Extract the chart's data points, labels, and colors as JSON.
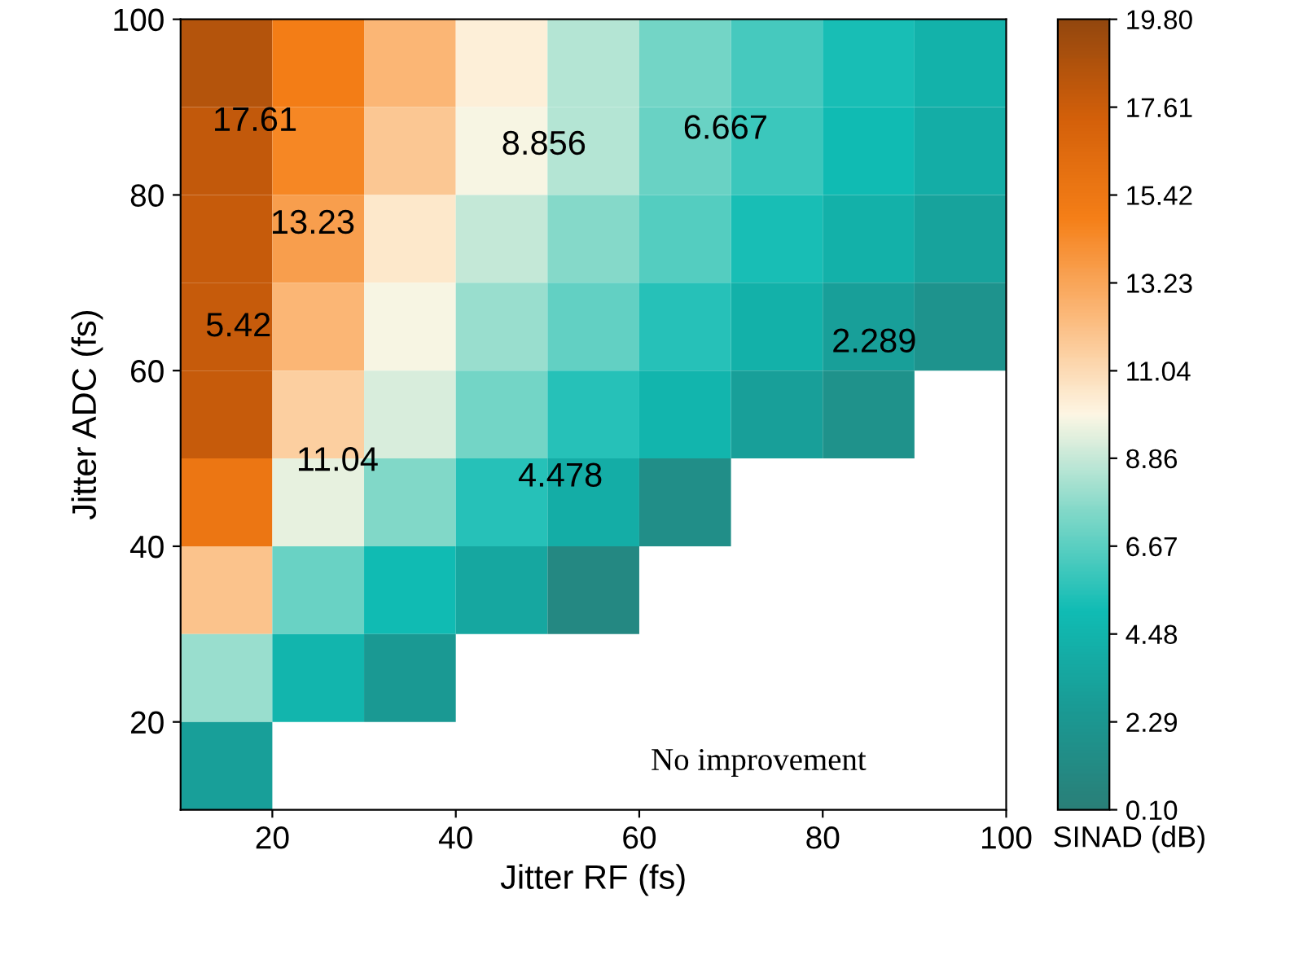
{
  "chart_data": {
    "type": "heatmap",
    "xlabel": "Jitter RF (fs)",
    "ylabel": "Jitter ADC (fs)",
    "clabel": "SINAD (dB)",
    "x": [
      15,
      25,
      35,
      45,
      55,
      65,
      75,
      85,
      95
    ],
    "y": [
      95,
      85,
      75,
      65,
      55,
      45,
      35,
      25,
      15
    ],
    "cells": [
      [
        18.5,
        15,
        12.5,
        10.2,
        8.5,
        7.2,
        6.2,
        5.2,
        4.3
      ],
      [
        18,
        14.5,
        11.8,
        9.8,
        8.5,
        7,
        6,
        5,
        4
      ],
      [
        17.8,
        13.5,
        10.5,
        8.8,
        7.6,
        6.5,
        5.2,
        4.2,
        3.2
      ],
      [
        17.8,
        12.5,
        9.8,
        8,
        6.8,
        5.5,
        4.2,
        3,
        2
      ],
      [
        17.8,
        11.5,
        9.2,
        7.2,
        5.5,
        4.5,
        3,
        1.8,
        null
      ],
      [
        15.5,
        9.5,
        7.5,
        5.5,
        4,
        1.5,
        null,
        null,
        null
      ],
      [
        12,
        7,
        5,
        3.5,
        1,
        null,
        null,
        null,
        null
      ],
      [
        8,
        4.5,
        2.5,
        null,
        null,
        null,
        null,
        null,
        null
      ],
      [
        3,
        null,
        null,
        null,
        null,
        null,
        null,
        null,
        null
      ]
    ],
    "colors": [
      "#2a7f78",
      "#1a9a94",
      "#10bcb4",
      "#80d8c8",
      "#fdf6e4",
      "#fbb97a",
      "#f57f17",
      "#d4600a",
      "#93470e"
    ],
    "clim": [
      0.1,
      19.8
    ],
    "cticks": [
      {
        "value": 0.1,
        "label": "0.10"
      },
      {
        "value": 2.29,
        "label": "2.29"
      },
      {
        "value": 4.48,
        "label": "4.48"
      },
      {
        "value": 6.67,
        "label": "6.67"
      },
      {
        "value": 8.86,
        "label": "8.86"
      },
      {
        "value": 11.04,
        "label": "11.04"
      },
      {
        "value": 13.23,
        "label": "13.23"
      },
      {
        "value": 15.42,
        "label": "15.42"
      },
      {
        "value": 17.61,
        "label": "17.61"
      },
      {
        "value": 19.8,
        "label": "19.80"
      }
    ],
    "xlim": [
      10,
      100
    ],
    "ylim": [
      10,
      100
    ],
    "xticks": [
      20,
      40,
      60,
      80,
      100
    ],
    "yticks": [
      20,
      40,
      60,
      80,
      100
    ],
    "annotations": [
      "17.61",
      "13.23",
      "5.42",
      "11.04",
      "8.856",
      "6.667",
      "4.478",
      "2.289",
      "No improvement"
    ]
  }
}
